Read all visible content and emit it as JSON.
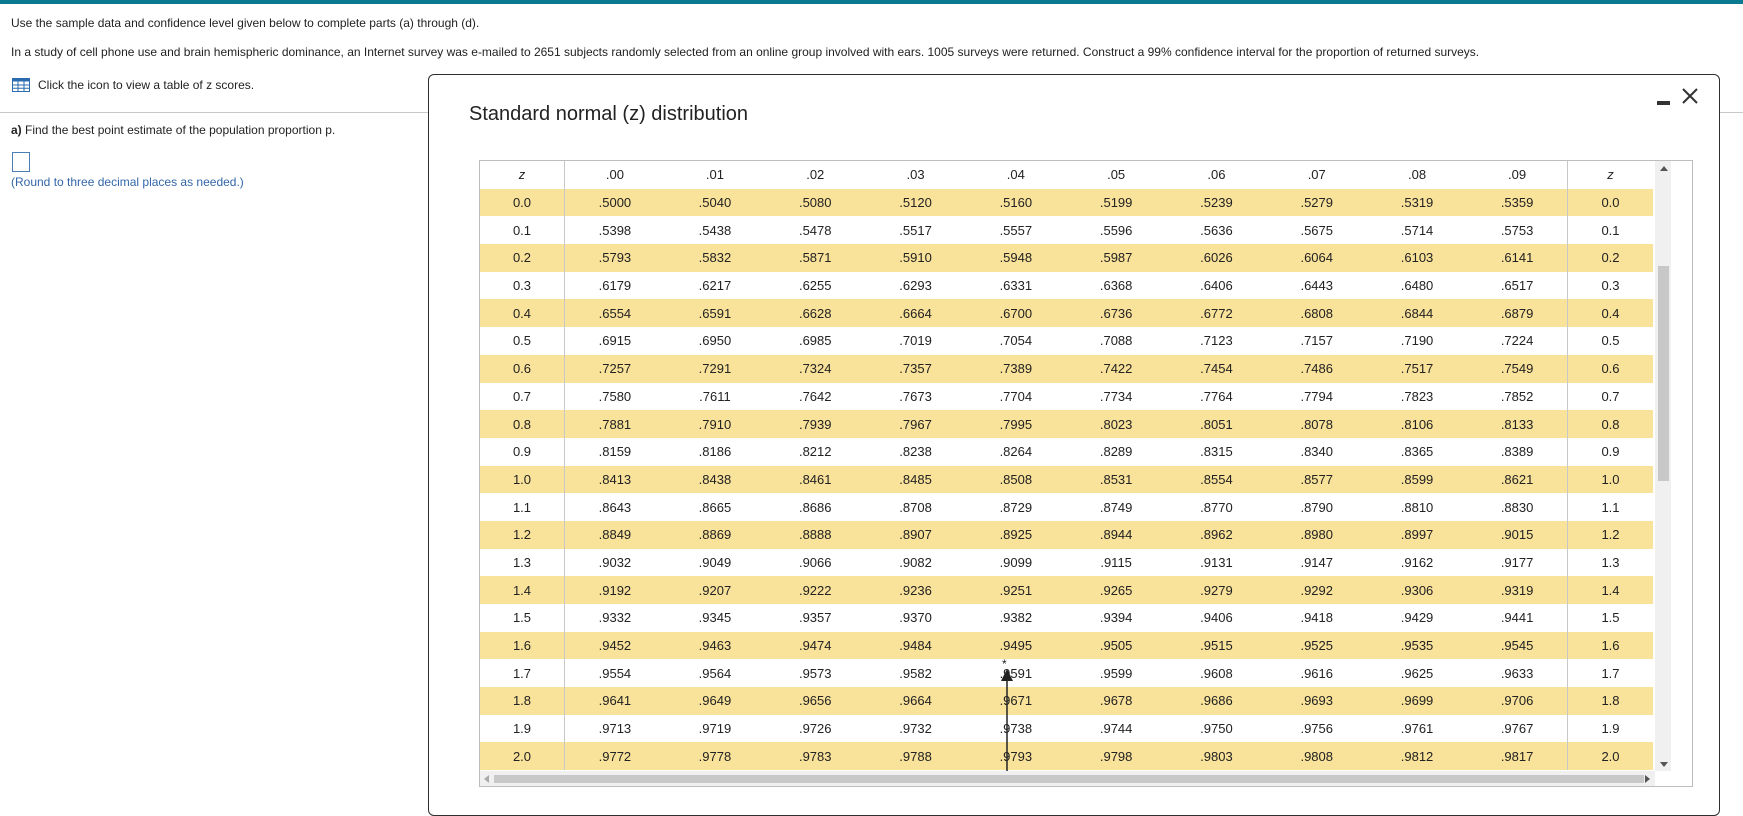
{
  "problem": {
    "intro": "Use the sample data and confidence level given below to complete parts (a) through (d).",
    "statement": "In a study of cell phone use and brain hemispheric dominance, an Internet survey was e-mailed to 2651 subjects randomly selected from an online group involved with ears. 1005 surveys were returned. Construct a 99% confidence interval for the proportion of returned surveys.",
    "icon_link": "Click the icon to view a table of z scores.",
    "part_a_label": "a)",
    "part_a_text": "Find the best point estimate of the population proportion p.",
    "round_note": "(Round to three decimal places as needed.)"
  },
  "dialog": {
    "title": "Standard normal (z) distribution",
    "header_left": "z",
    "header_right": "z",
    "columns": [
      ".00",
      ".01",
      ".02",
      ".03",
      ".04",
      ".05",
      ".06",
      ".07",
      ".08",
      ".09"
    ],
    "rows": [
      {
        "z": "0.0",
        "v": [
          ".5000",
          ".5040",
          ".5080",
          ".5120",
          ".5160",
          ".5199",
          ".5239",
          ".5279",
          ".5319",
          ".5359"
        ]
      },
      {
        "z": "0.1",
        "v": [
          ".5398",
          ".5438",
          ".5478",
          ".5517",
          ".5557",
          ".5596",
          ".5636",
          ".5675",
          ".5714",
          ".5753"
        ]
      },
      {
        "z": "0.2",
        "v": [
          ".5793",
          ".5832",
          ".5871",
          ".5910",
          ".5948",
          ".5987",
          ".6026",
          ".6064",
          ".6103",
          ".6141"
        ]
      },
      {
        "z": "0.3",
        "v": [
          ".6179",
          ".6217",
          ".6255",
          ".6293",
          ".6331",
          ".6368",
          ".6406",
          ".6443",
          ".6480",
          ".6517"
        ]
      },
      {
        "z": "0.4",
        "v": [
          ".6554",
          ".6591",
          ".6628",
          ".6664",
          ".6700",
          ".6736",
          ".6772",
          ".6808",
          ".6844",
          ".6879"
        ]
      },
      {
        "z": "0.5",
        "v": [
          ".6915",
          ".6950",
          ".6985",
          ".7019",
          ".7054",
          ".7088",
          ".7123",
          ".7157",
          ".7190",
          ".7224"
        ]
      },
      {
        "z": "0.6",
        "v": [
          ".7257",
          ".7291",
          ".7324",
          ".7357",
          ".7389",
          ".7422",
          ".7454",
          ".7486",
          ".7517",
          ".7549"
        ]
      },
      {
        "z": "0.7",
        "v": [
          ".7580",
          ".7611",
          ".7642",
          ".7673",
          ".7704",
          ".7734",
          ".7764",
          ".7794",
          ".7823",
          ".7852"
        ]
      },
      {
        "z": "0.8",
        "v": [
          ".7881",
          ".7910",
          ".7939",
          ".7967",
          ".7995",
          ".8023",
          ".8051",
          ".8078",
          ".8106",
          ".8133"
        ]
      },
      {
        "z": "0.9",
        "v": [
          ".8159",
          ".8186",
          ".8212",
          ".8238",
          ".8264",
          ".8289",
          ".8315",
          ".8340",
          ".8365",
          ".8389"
        ]
      },
      {
        "z": "1.0",
        "v": [
          ".8413",
          ".8438",
          ".8461",
          ".8485",
          ".8508",
          ".8531",
          ".8554",
          ".8577",
          ".8599",
          ".8621"
        ]
      },
      {
        "z": "1.1",
        "v": [
          ".8643",
          ".8665",
          ".8686",
          ".8708",
          ".8729",
          ".8749",
          ".8770",
          ".8790",
          ".8810",
          ".8830"
        ]
      },
      {
        "z": "1.2",
        "v": [
          ".8849",
          ".8869",
          ".8888",
          ".8907",
          ".8925",
          ".8944",
          ".8962",
          ".8980",
          ".8997",
          ".9015"
        ]
      },
      {
        "z": "1.3",
        "v": [
          ".9032",
          ".9049",
          ".9066",
          ".9082",
          ".9099",
          ".9115",
          ".9131",
          ".9147",
          ".9162",
          ".9177"
        ]
      },
      {
        "z": "1.4",
        "v": [
          ".9192",
          ".9207",
          ".9222",
          ".9236",
          ".9251",
          ".9265",
          ".9279",
          ".9292",
          ".9306",
          ".9319"
        ]
      },
      {
        "z": "1.5",
        "v": [
          ".9332",
          ".9345",
          ".9357",
          ".9370",
          ".9382",
          ".9394",
          ".9406",
          ".9418",
          ".9429",
          ".9441"
        ]
      },
      {
        "z": "1.6",
        "v": [
          ".9452",
          ".9463",
          ".9474",
          ".9484",
          ".9495",
          ".9505",
          ".9515",
          ".9525",
          ".9535",
          ".9545"
        ]
      },
      {
        "z": "1.7",
        "v": [
          ".9554",
          ".9564",
          ".9573",
          ".9582",
          ".9591",
          ".9599",
          ".9608",
          ".9616",
          ".9625",
          ".9633"
        ]
      },
      {
        "z": "1.8",
        "v": [
          ".9641",
          ".9649",
          ".9656",
          ".9664",
          ".9671",
          ".9678",
          ".9686",
          ".9693",
          ".9699",
          ".9706"
        ]
      },
      {
        "z": "1.9",
        "v": [
          ".9713",
          ".9719",
          ".9726",
          ".9732",
          ".9738",
          ".9744",
          ".9750",
          ".9756",
          ".9761",
          ".9767"
        ]
      },
      {
        "z": "2.0",
        "v": [
          ".9772",
          ".9778",
          ".9783",
          ".9788",
          ".9793",
          ".9798",
          ".9803",
          ".9808",
          ".9812",
          ".9817"
        ]
      }
    ],
    "star_marker": "*"
  },
  "colors": {
    "accent_bar": "#0a7a91",
    "row_highlight": "#f9e29a",
    "link_blue": "#3366aa"
  },
  "icons": {
    "table_icon": "table-grid-icon",
    "minimize": "minimize-icon",
    "close": "close-icon"
  }
}
